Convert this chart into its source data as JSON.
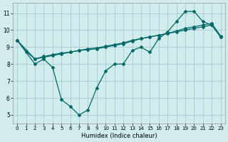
{
  "bg_color": "#d0ecec",
  "grid_color": "#aacccc",
  "line_color": "#006868",
  "xlabel": "Humidex (Indice chaleur)",
  "xlim_min": -0.5,
  "xlim_max": 23.5,
  "ylim_min": 4.5,
  "ylim_max": 11.6,
  "xticks": [
    0,
    1,
    2,
    3,
    4,
    5,
    6,
    7,
    8,
    9,
    10,
    11,
    12,
    13,
    14,
    15,
    16,
    17,
    18,
    19,
    20,
    21,
    22,
    23
  ],
  "yticks": [
    5,
    6,
    7,
    8,
    9,
    10,
    11
  ],
  "xlabel_fontsize": 6.0,
  "tick_fontsize_x": 5.0,
  "tick_fontsize_y": 5.5,
  "curve_A_x": [
    0,
    1,
    2,
    3,
    4,
    5,
    6,
    7,
    8,
    9,
    10,
    11,
    12,
    13,
    14,
    15,
    16,
    17,
    18,
    19,
    20,
    21,
    22,
    23
  ],
  "curve_A_y": [
    9.4,
    8.7,
    8.0,
    8.3,
    7.8,
    5.9,
    5.5,
    5.0,
    5.3,
    6.6,
    7.6,
    8.0,
    8.0,
    8.8,
    9.0,
    8.7,
    9.5,
    9.9,
    10.5,
    11.1,
    11.1,
    10.5,
    10.3,
    9.6
  ],
  "curve_B_x": [
    0,
    2,
    3,
    4,
    5,
    6,
    7,
    8,
    9,
    10,
    11,
    12,
    13,
    14,
    15,
    16,
    17,
    18,
    19,
    20,
    21,
    22,
    23
  ],
  "curve_B_y": [
    9.4,
    8.3,
    8.4,
    8.5,
    8.6,
    8.7,
    8.8,
    8.85,
    8.9,
    9.0,
    9.1,
    9.2,
    9.35,
    9.5,
    9.6,
    9.7,
    9.8,
    9.95,
    10.1,
    10.2,
    10.3,
    10.4,
    9.65
  ],
  "curve_C_x": [
    0,
    1,
    2,
    3,
    4,
    5,
    6,
    7,
    8,
    9,
    10,
    11,
    12,
    13,
    14,
    15,
    16,
    17,
    18,
    19,
    20,
    21,
    22,
    23
  ],
  "curve_C_y": [
    9.4,
    8.75,
    8.3,
    8.45,
    8.55,
    8.65,
    8.7,
    8.8,
    8.9,
    8.95,
    9.05,
    9.15,
    9.25,
    9.4,
    9.5,
    9.6,
    9.7,
    9.8,
    9.9,
    10.0,
    10.1,
    10.2,
    10.3,
    9.6
  ]
}
